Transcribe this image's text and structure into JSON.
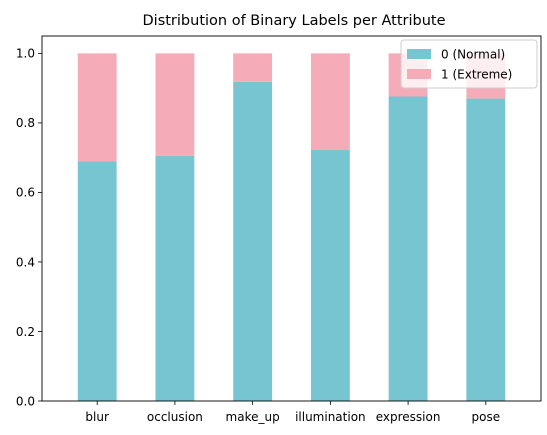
{
  "chart_data": {
    "type": "bar",
    "stacked": true,
    "title": "Distribution of Binary Labels per Attribute",
    "xlabel": "",
    "ylabel": "",
    "categories": [
      "blur",
      "occlusion",
      "make_up",
      "illumination",
      "expression",
      "pose"
    ],
    "series": [
      {
        "name": "0 (Normal)",
        "color": "#77c5d1",
        "values": [
          0.69,
          0.705,
          0.918,
          0.722,
          0.876,
          0.87
        ]
      },
      {
        "name": "1 (Extreme)",
        "color": "#f6abb8",
        "values": [
          0.31,
          0.295,
          0.082,
          0.278,
          0.124,
          0.13
        ]
      }
    ],
    "ylim": [
      0,
      1.05
    ],
    "yticks": [
      "0.0",
      "0.2",
      "0.4",
      "0.6",
      "0.8",
      "1.0"
    ],
    "grid": false,
    "legend_position": "top-right"
  }
}
